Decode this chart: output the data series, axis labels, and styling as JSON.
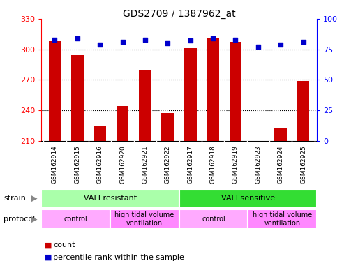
{
  "title": "GDS2709 / 1387962_at",
  "samples": [
    "GSM162914",
    "GSM162915",
    "GSM162916",
    "GSM162920",
    "GSM162921",
    "GSM162922",
    "GSM162917",
    "GSM162918",
    "GSM162919",
    "GSM162923",
    "GSM162924",
    "GSM162925"
  ],
  "counts": [
    308,
    294,
    224,
    244,
    280,
    237,
    301,
    311,
    307,
    210,
    222,
    269
  ],
  "percentiles": [
    83,
    84,
    79,
    81,
    83,
    80,
    82,
    84,
    83,
    77,
    79,
    81
  ],
  "ylim_left": [
    210,
    330
  ],
  "ylim_right": [
    0,
    100
  ],
  "yticks_left": [
    210,
    240,
    270,
    300,
    330
  ],
  "yticks_right": [
    0,
    25,
    50,
    75,
    100
  ],
  "bar_color": "#cc0000",
  "dot_color": "#0000cc",
  "strain_resistant_label": "VALI resistant",
  "strain_resistant_color": "#aaffaa",
  "strain_sensitive_label": "VALI sensitive",
  "strain_sensitive_color": "#33dd33",
  "protocol_control_color": "#ffaaff",
  "protocol_htv_color": "#ff88ff",
  "protocol_htv_label": "high tidal volume\nventilation",
  "protocol_control_label": "control",
  "legend_count_color": "#cc0000",
  "legend_pct_color": "#0000cc",
  "background_color": "#ffffff"
}
